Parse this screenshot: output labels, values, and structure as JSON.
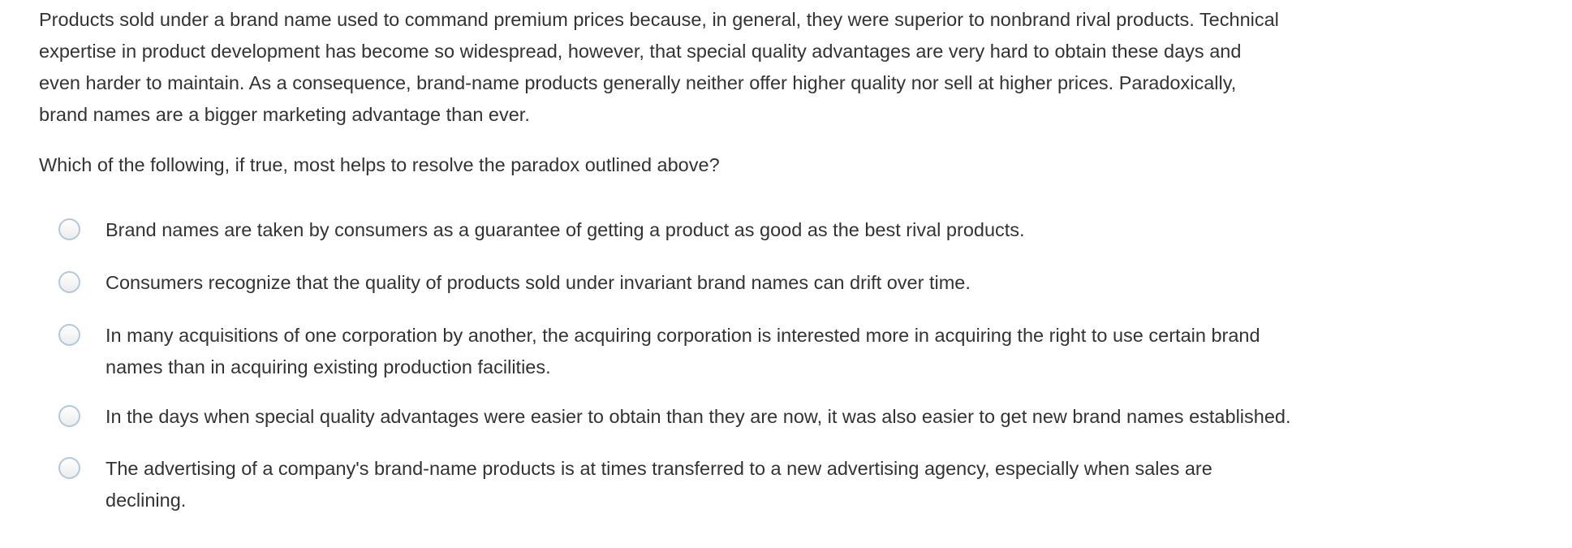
{
  "passage": [
    "Products sold under a brand name used to command premium prices because, in general, they were superior to nonbrand rival products. Technical",
    "expertise in product development has become so widespread, however, that special quality advantages are very hard to obtain these days and",
    "even harder to maintain. As a consequence, brand-name products generally neither offer higher quality nor sell at higher prices. Paradoxically,",
    "brand names are a bigger marketing advantage than ever."
  ],
  "question": "Which of the following, if true, most helps to resolve the paradox outlined above?",
  "options": [
    {
      "lines": [
        "Brand names are taken by consumers as a guarantee of getting a product as good as the best rival products."
      ],
      "selected": false
    },
    {
      "lines": [
        "Consumers recognize that the quality of products sold under invariant brand names can drift over time."
      ],
      "selected": false
    },
    {
      "lines": [
        "In many acquisitions of one corporation by another, the acquiring corporation is interested more in acquiring the right to use certain brand",
        "names than in acquiring existing production facilities."
      ],
      "selected": false
    },
    {
      "lines": [
        "In the days when special quality advantages were easier to obtain than they are now, it was also easier to get new brand names established."
      ],
      "selected": false
    },
    {
      "lines": [
        "The advertising of a company's brand-name products is at times transferred to a new advertising agency, especially when sales are",
        "declining."
      ],
      "selected": false
    }
  ],
  "colors": {
    "text": "#333333",
    "radio_border": "#b3c8dc"
  }
}
